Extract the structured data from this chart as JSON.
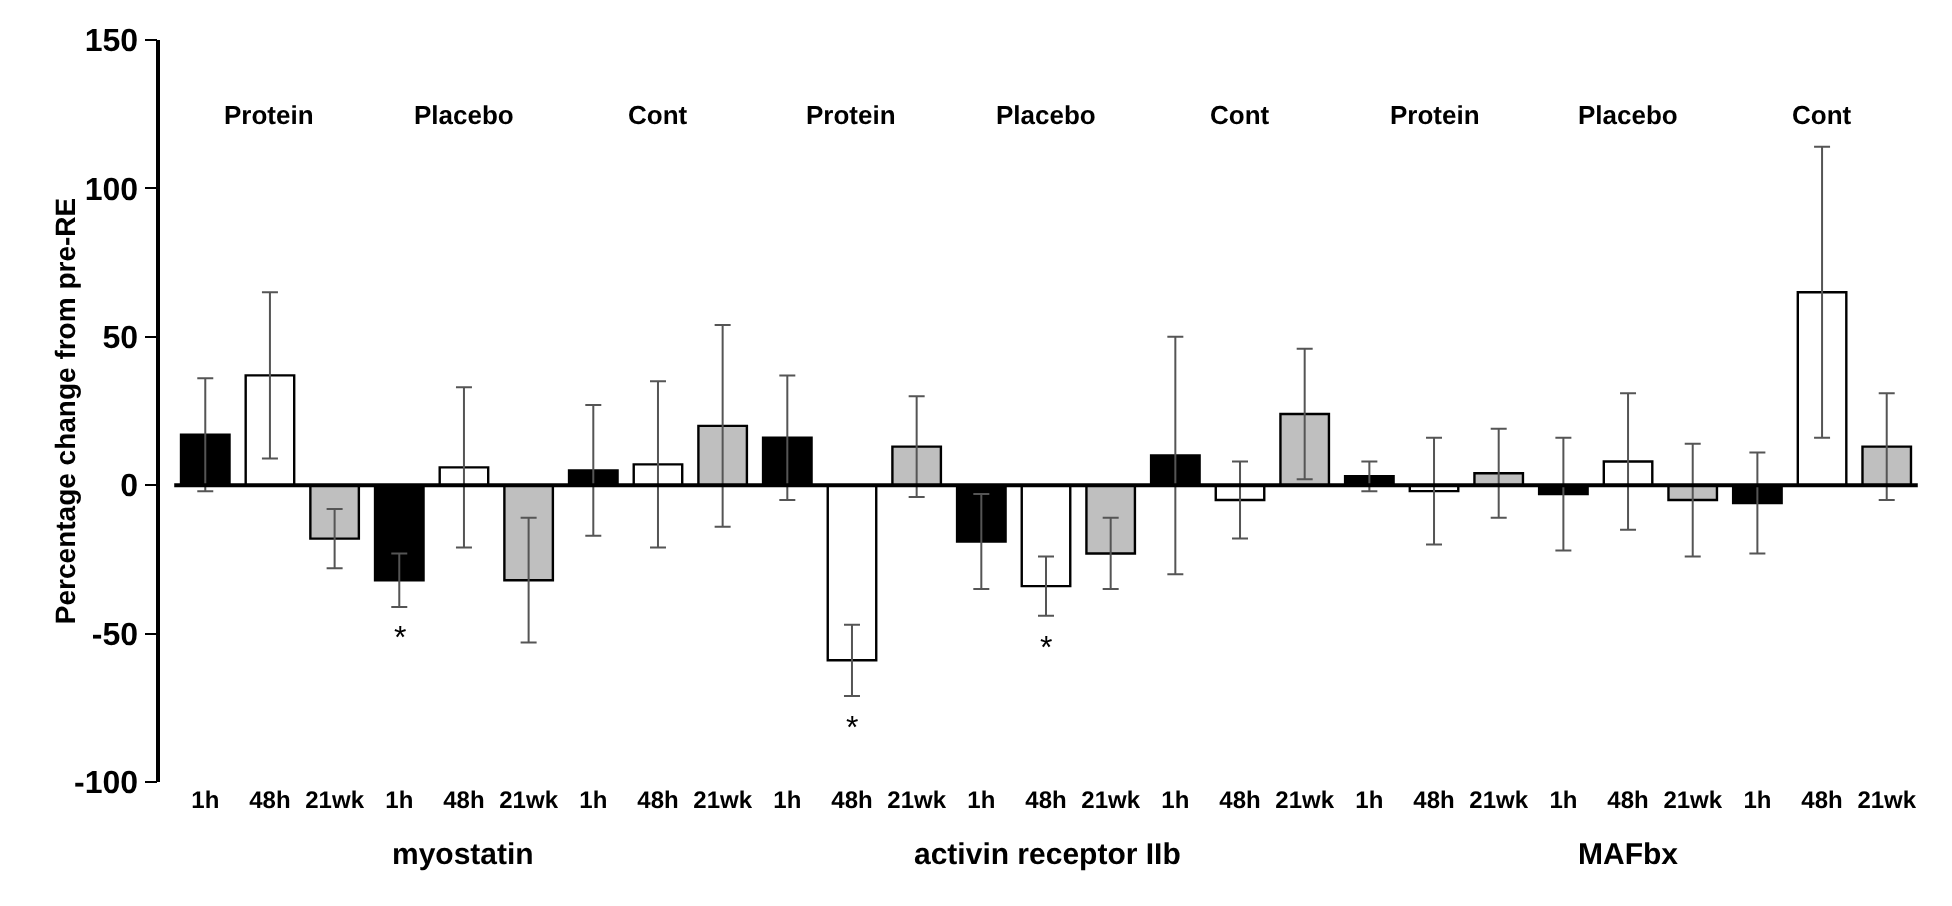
{
  "chart_data": {
    "type": "bar",
    "ylabel": "Percentage change from pre-RE",
    "categories": [
      "1h",
      "48h",
      "21wk",
      "1h",
      "48h",
      "21wk",
      "1h",
      "48h",
      "21wk",
      "1h",
      "48h",
      "21wk",
      "1h",
      "48h",
      "21wk",
      "1h",
      "48h",
      "21wk",
      "1h",
      "48h",
      "21wk",
      "1h",
      "48h",
      "21wk",
      "1h",
      "48h",
      "21wk"
    ],
    "values": [
      17,
      37,
      -18,
      -32,
      6,
      -32,
      5,
      7,
      20,
      16,
      -59,
      13,
      -19,
      -34,
      -23,
      10,
      -5,
      24,
      3,
      -2,
      4,
      -3,
      8,
      -5,
      -6,
      65,
      13
    ],
    "errors": [
      19,
      28,
      10,
      9,
      27,
      21,
      22,
      28,
      34,
      21,
      12,
      17,
      16,
      10,
      12,
      40,
      13,
      22,
      5,
      18,
      15,
      19,
      23,
      19,
      17,
      49,
      18
    ],
    "colors": [
      "#000000",
      "#ffffff",
      "#bfbfbf",
      "#000000",
      "#ffffff",
      "#bfbfbf",
      "#000000",
      "#ffffff",
      "#bfbfbf",
      "#000000",
      "#ffffff",
      "#bfbfbf",
      "#000000",
      "#ffffff",
      "#bfbfbf",
      "#000000",
      "#ffffff",
      "#bfbfbf",
      "#000000",
      "#ffffff",
      "#bfbfbf",
      "#000000",
      "#ffffff",
      "#bfbfbf",
      "#000000",
      "#ffffff",
      "#bfbfbf"
    ],
    "value_labels": [
      null,
      null,
      null,
      "*",
      null,
      null,
      null,
      null,
      null,
      null,
      "*",
      null,
      null,
      "*",
      null,
      null,
      null,
      null,
      null,
      null,
      null,
      null,
      null,
      null,
      null,
      null,
      null
    ],
    "ref_lines": [
      {
        "axis": "y",
        "value": 0
      }
    ],
    "ylim": [
      -100,
      150
    ],
    "yticks": [
      -100,
      -50,
      0,
      50,
      100,
      150
    ],
    "grid": false,
    "annotations": [
      "Protein",
      "Placebo",
      "Cont",
      "Protein",
      "Placebo",
      "Cont",
      "Protein",
      "Placebo",
      "Cont",
      "myostatin",
      "activin receptor IIb",
      "MAFbx"
    ]
  }
}
